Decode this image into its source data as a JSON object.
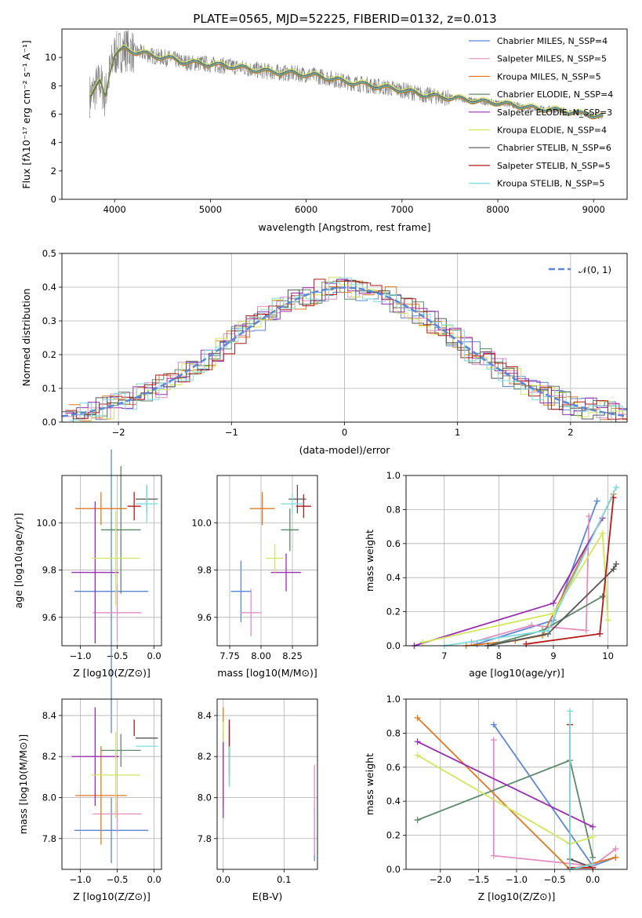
{
  "title": "PLATE=0565, MJD=52225, FIBERID=0132, z=0.013",
  "legend_text": [
    "Chabrier MILES, N_SSP=4",
    "Salpeter MILES, N_SSP=5",
    "Kroupa MILES, N_SSP=5",
    "Chabrier ELODIE, N_SSP=4",
    "Salpeter ELODIE, N_SSP=3",
    "Kroupa ELODIE, N_SSP=4",
    "Chabrier STELIB, N_SSP=6",
    "Salpeter STELIB, N_SSP=5",
    "Kroupa STELIB, N_SSP=5"
  ],
  "hist_legend": "𝒩(0, 1)",
  "colors": [
    "#5a87d8",
    "#e48ec2",
    "#e07a22",
    "#5e8a6b",
    "#9b2db3",
    "#cfe85a",
    "#555555",
    "#b31b1b",
    "#7fdcdf"
  ],
  "chart_data": [
    {
      "type": "line",
      "name": "spectrum",
      "xlabel": "wavelength [Angstrom, rest frame]",
      "ylabel": "Flux [f_λ 10^-17 erg cm^-2 s^-1 A^-1]",
      "xlim": [
        3450,
        9350
      ],
      "ylim": [
        0,
        12
      ],
      "xticks": [
        4000,
        5000,
        6000,
        7000,
        8000,
        9000
      ],
      "yticks": [
        0,
        2,
        4,
        6,
        8,
        10
      ],
      "data_x": [
        3750,
        3800,
        3850,
        3900,
        3950,
        4000,
        4050,
        4100,
        4200,
        4300,
        4400,
        4500,
        4600,
        4700,
        4800,
        4900,
        5000,
        5200,
        5400,
        5600,
        5800,
        6000,
        6200,
        6400,
        6600,
        6800,
        7000,
        7200,
        7400,
        7600,
        7800,
        8000,
        8200,
        8400,
        8600,
        8800,
        9000,
        9100
      ],
      "data_y": [
        7.3,
        7.8,
        8.3,
        7.2,
        9.0,
        10.2,
        10.4,
        10.6,
        10.4,
        10.3,
        10.1,
        10.0,
        9.9,
        9.7,
        9.6,
        9.6,
        9.5,
        9.4,
        9.2,
        9.0,
        8.9,
        8.8,
        8.6,
        8.3,
        8.1,
        7.9,
        7.7,
        7.4,
        7.2,
        7.1,
        6.9,
        6.8,
        6.6,
        6.4,
        6.3,
        6.1,
        5.9,
        5.8
      ]
    },
    {
      "type": "bar",
      "name": "residual histogram",
      "xlabel": "(data-model)/error",
      "ylabel": "Normed distribution",
      "xlim": [
        -2.5,
        2.5
      ],
      "ylim": [
        0,
        0.5
      ],
      "xticks": [
        -2,
        -1,
        0,
        1,
        2
      ],
      "yticks": [
        0.0,
        0.1,
        0.2,
        0.3,
        0.4,
        0.5
      ]
    },
    {
      "type": "scatter",
      "name": "age vs Z",
      "xlabel": "Z [log10(Z/Z⊙)]",
      "ylabel": "age [log10(age/yr)]",
      "xlim": [
        -1.25,
        0.1
      ],
      "ylim": [
        9.48,
        10.2
      ],
      "xticks": [
        -1.0,
        -0.5,
        0.0
      ],
      "xtick_labels": [
        "−1.0",
        "−0.5",
        "0.0"
      ],
      "yticks": [
        9.6,
        9.8,
        10.0
      ],
      "ytick_labels": [
        "9.6",
        "9.8",
        "10.0"
      ],
      "points": [
        {
          "x": -0.58,
          "xerr": 0.5,
          "y": 9.71,
          "yerr": 0.6
        },
        {
          "x": -0.5,
          "xerr": 0.33,
          "y": 9.62,
          "yerr": 0.12
        },
        {
          "x": -0.72,
          "xerr": 0.35,
          "y": 10.06,
          "yerr": 0.07
        },
        {
          "x": -0.45,
          "xerr": 0.27,
          "y": 9.97,
          "yerr": 0.27
        },
        {
          "x": -0.8,
          "xerr": 0.32,
          "y": 9.79,
          "yerr": 0.3
        },
        {
          "x": -0.52,
          "xerr": 0.33,
          "y": 9.85,
          "yerr": 0.2
        },
        {
          "x": -0.1,
          "xerr": 0.15,
          "y": 10.1,
          "yerr": 0.06
        },
        {
          "x": -0.27,
          "xerr": 0.09,
          "y": 10.07,
          "yerr": 0.06
        },
        {
          "x": -0.1,
          "xerr": 0.15,
          "y": 10.08,
          "yerr": 0.08
        }
      ]
    },
    {
      "type": "scatter",
      "name": "age vs mass",
      "xlabel": "mass [log10(M/M⊙)]",
      "ylabel": "",
      "xlim": [
        7.65,
        8.45
      ],
      "ylim": [
        9.48,
        10.2
      ],
      "xticks": [
        7.75,
        8.0,
        8.25
      ],
      "xtick_labels": [
        "7.75",
        "8.00",
        "8.25"
      ],
      "yticks": [
        9.6,
        9.8,
        10.0
      ],
      "ytick_labels": [
        "9.6",
        "9.8",
        "10.0"
      ],
      "points": [
        {
          "x": 7.84,
          "xerr": 0.08,
          "y": 9.71,
          "yerr": 0.13
        },
        {
          "x": 7.92,
          "xerr": 0.08,
          "y": 9.62,
          "yerr": 0.1
        },
        {
          "x": 8.01,
          "xerr": 0.1,
          "y": 10.06,
          "yerr": 0.07
        },
        {
          "x": 8.23,
          "xerr": 0.07,
          "y": 9.97,
          "yerr": 0.09
        },
        {
          "x": 8.2,
          "xerr": 0.12,
          "y": 9.79,
          "yerr": 0.08
        },
        {
          "x": 8.11,
          "xerr": 0.07,
          "y": 9.85,
          "yerr": 0.06
        },
        {
          "x": 8.29,
          "xerr": 0.07,
          "y": 10.1,
          "yerr": 0.06
        },
        {
          "x": 8.34,
          "xerr": 0.06,
          "y": 10.07,
          "yerr": 0.05
        },
        {
          "x": 8.25,
          "xerr": 0.09,
          "y": 10.08,
          "yerr": 0.04
        }
      ]
    },
    {
      "type": "line",
      "name": "mass weight vs age",
      "xlabel": "age [log10(age/yr)]",
      "ylabel": "mass weight",
      "xlim": [
        6.3,
        10.35
      ],
      "ylim": [
        0,
        1.0
      ],
      "xticks": [
        7,
        8,
        9,
        10
      ],
      "xtick_labels": [
        "7",
        "8",
        "9",
        "10"
      ],
      "yticks": [
        0.0,
        0.2,
        0.4,
        0.6,
        0.8,
        1.0
      ],
      "ytick_labels": [
        "0.0",
        "0.2",
        "0.4",
        "0.6",
        "0.8",
        "1.0"
      ],
      "series": [
        {
          "x": [
            7.6,
            9.0,
            9.8
          ],
          "y": [
            0.01,
            0.15,
            0.85
          ]
        },
        {
          "x": [
            7.5,
            8.6,
            9.6,
            9.65
          ],
          "y": [
            0.02,
            0.12,
            0.09,
            0.76
          ]
        },
        {
          "x": [
            7.4,
            8.3,
            8.8,
            10.1
          ],
          "y": [
            0.0,
            0.03,
            0.06,
            0.89
          ]
        },
        {
          "x": [
            7.8,
            8.8,
            9.9
          ],
          "y": [
            0.0,
            0.09,
            0.29
          ]
        },
        {
          "x": [
            6.45,
            9.0,
            9.9
          ],
          "y": [
            0.0,
            0.25,
            0.75
          ]
        },
        {
          "x": [
            6.6,
            9.0,
            9.9,
            10.0
          ],
          "y": [
            0.02,
            0.19,
            0.66,
            0.15
          ]
        },
        {
          "x": [
            7.8,
            8.9,
            10.1,
            10.15
          ],
          "y": [
            0.0,
            0.07,
            0.45,
            0.48
          ]
        },
        {
          "x": [
            8.5,
            9.85,
            10.1
          ],
          "y": [
            0.01,
            0.07,
            0.87
          ]
        },
        {
          "x": [
            7.0,
            8.9,
            10.15
          ],
          "y": [
            0.0,
            0.09,
            0.93
          ]
        }
      ]
    },
    {
      "type": "scatter",
      "name": "mass vs Z",
      "xlabel": "Z [log10(Z/Z⊙)]",
      "ylabel": "mass [log10(M/M⊙)]",
      "xlim": [
        -1.25,
        0.1
      ],
      "ylim": [
        7.65,
        8.48
      ],
      "xticks": [
        -1.0,
        -0.5,
        0.0
      ],
      "xtick_labels": [
        "−1.0",
        "−0.5",
        "0.0"
      ],
      "yticks": [
        7.8,
        8.0,
        8.2,
        8.4
      ],
      "ytick_labels": [
        "7.8",
        "8.0",
        "8.2",
        "8.4"
      ],
      "points": [
        {
          "x": -0.58,
          "xerr": 0.5,
          "y": 7.84,
          "yerr": 0.16
        },
        {
          "x": -0.5,
          "xerr": 0.33,
          "y": 7.92,
          "yerr": 0.09
        },
        {
          "x": -0.72,
          "xerr": 0.35,
          "y": 8.01,
          "yerr": 0.24
        },
        {
          "x": -0.45,
          "xerr": 0.27,
          "y": 8.23,
          "yerr": 0.08
        },
        {
          "x": -0.8,
          "xerr": 0.32,
          "y": 8.2,
          "yerr": 0.24
        },
        {
          "x": -0.52,
          "xerr": 0.33,
          "y": 8.11,
          "yerr": 0.21
        },
        {
          "x": -0.1,
          "xerr": 0.15,
          "y": 8.29,
          "yerr": 0.0
        },
        {
          "x": -0.27,
          "xerr": 0.0,
          "y": 8.34,
          "yerr": 0.04
        },
        {
          "x": -0.1,
          "xerr": 0.15,
          "y": 8.25,
          "yerr": 0.0
        }
      ]
    },
    {
      "type": "scatter",
      "name": "mass vs E(B-V)",
      "xlabel": "E(B-V)",
      "ylabel": "",
      "xlim": [
        -0.01,
        0.155
      ],
      "ylim": [
        7.65,
        8.48
      ],
      "xticks": [
        0.0,
        0.1
      ],
      "xtick_labels": [
        "0.0",
        "0.1"
      ],
      "yticks": [
        7.8,
        8.0,
        8.2,
        8.4
      ],
      "ytick_labels": [
        "7.8",
        "8.0",
        "8.2",
        "8.4"
      ],
      "points": [
        {
          "x": 0.15,
          "y": 7.82,
          "yerr": 0.13
        },
        {
          "x": 0.15,
          "y": 7.94,
          "yerr": 0.22
        },
        {
          "x": 0.0,
          "y": 8.2,
          "yerr": 0.24
        },
        {
          "x": 0.01,
          "y": 8.23,
          "yerr": 0.12
        },
        {
          "x": 0.0,
          "y": 8.11,
          "yerr": 0.21
        },
        {
          "x": 0.0,
          "y": 8.32,
          "yerr": 0.05
        },
        {
          "x": 0.01,
          "y": 8.29,
          "yerr": 0.09
        },
        {
          "x": 0.01,
          "y": 8.22,
          "yerr": 0.16
        },
        {
          "x": 0.01,
          "y": 8.15,
          "yerr": 0.1
        }
      ]
    },
    {
      "type": "line",
      "name": "mass weight vs Z",
      "xlabel": "Z [log10(Z/Z⊙)]",
      "ylabel": "mass weight",
      "xlim": [
        -2.45,
        0.45
      ],
      "ylim": [
        0,
        1.0
      ],
      "xticks": [
        -2.0,
        -1.5,
        -1.0,
        -0.5,
        0.0
      ],
      "xtick_labels": [
        "−2.0",
        "−1.5",
        "−1.0",
        "−0.5",
        "0.0"
      ],
      "yticks": [
        0.0,
        0.2,
        0.4,
        0.6,
        0.8,
        1.0
      ],
      "ytick_labels": [
        "0.0",
        "0.2",
        "0.4",
        "0.6",
        "0.8",
        "1.0"
      ],
      "series": [
        {
          "x": [
            -1.3,
            0.0,
            0.3
          ],
          "y": [
            0.85,
            0.02,
            0.07
          ]
        },
        {
          "x": [
            -1.3,
            -1.3,
            0.0,
            0.3
          ],
          "y": [
            0.76,
            0.08,
            0.02,
            0.12
          ]
        },
        {
          "x": [
            -2.3,
            -0.3,
            0.3
          ],
          "y": [
            0.89,
            0.0,
            0.07
          ]
        },
        {
          "x": [
            -2.3,
            -0.3,
            0.0
          ],
          "y": [
            0.29,
            0.64,
            0.07
          ]
        },
        {
          "x": [
            -2.3,
            0.0
          ],
          "y": [
            0.75,
            0.25
          ]
        },
        {
          "x": [
            -2.3,
            -0.3,
            0.0
          ],
          "y": [
            0.67,
            0.15,
            0.19
          ]
        },
        {
          "x": [
            -0.3,
            0.0
          ],
          "y": [
            0.06,
            0.01
          ]
        },
        {
          "x": [
            -0.3,
            -0.3,
            0.0
          ],
          "y": [
            0.85,
            0.01,
            0.01
          ]
        },
        {
          "x": [
            -0.3,
            -0.3,
            0.0
          ],
          "y": [
            0.93,
            0.0,
            0.03
          ]
        }
      ]
    }
  ]
}
